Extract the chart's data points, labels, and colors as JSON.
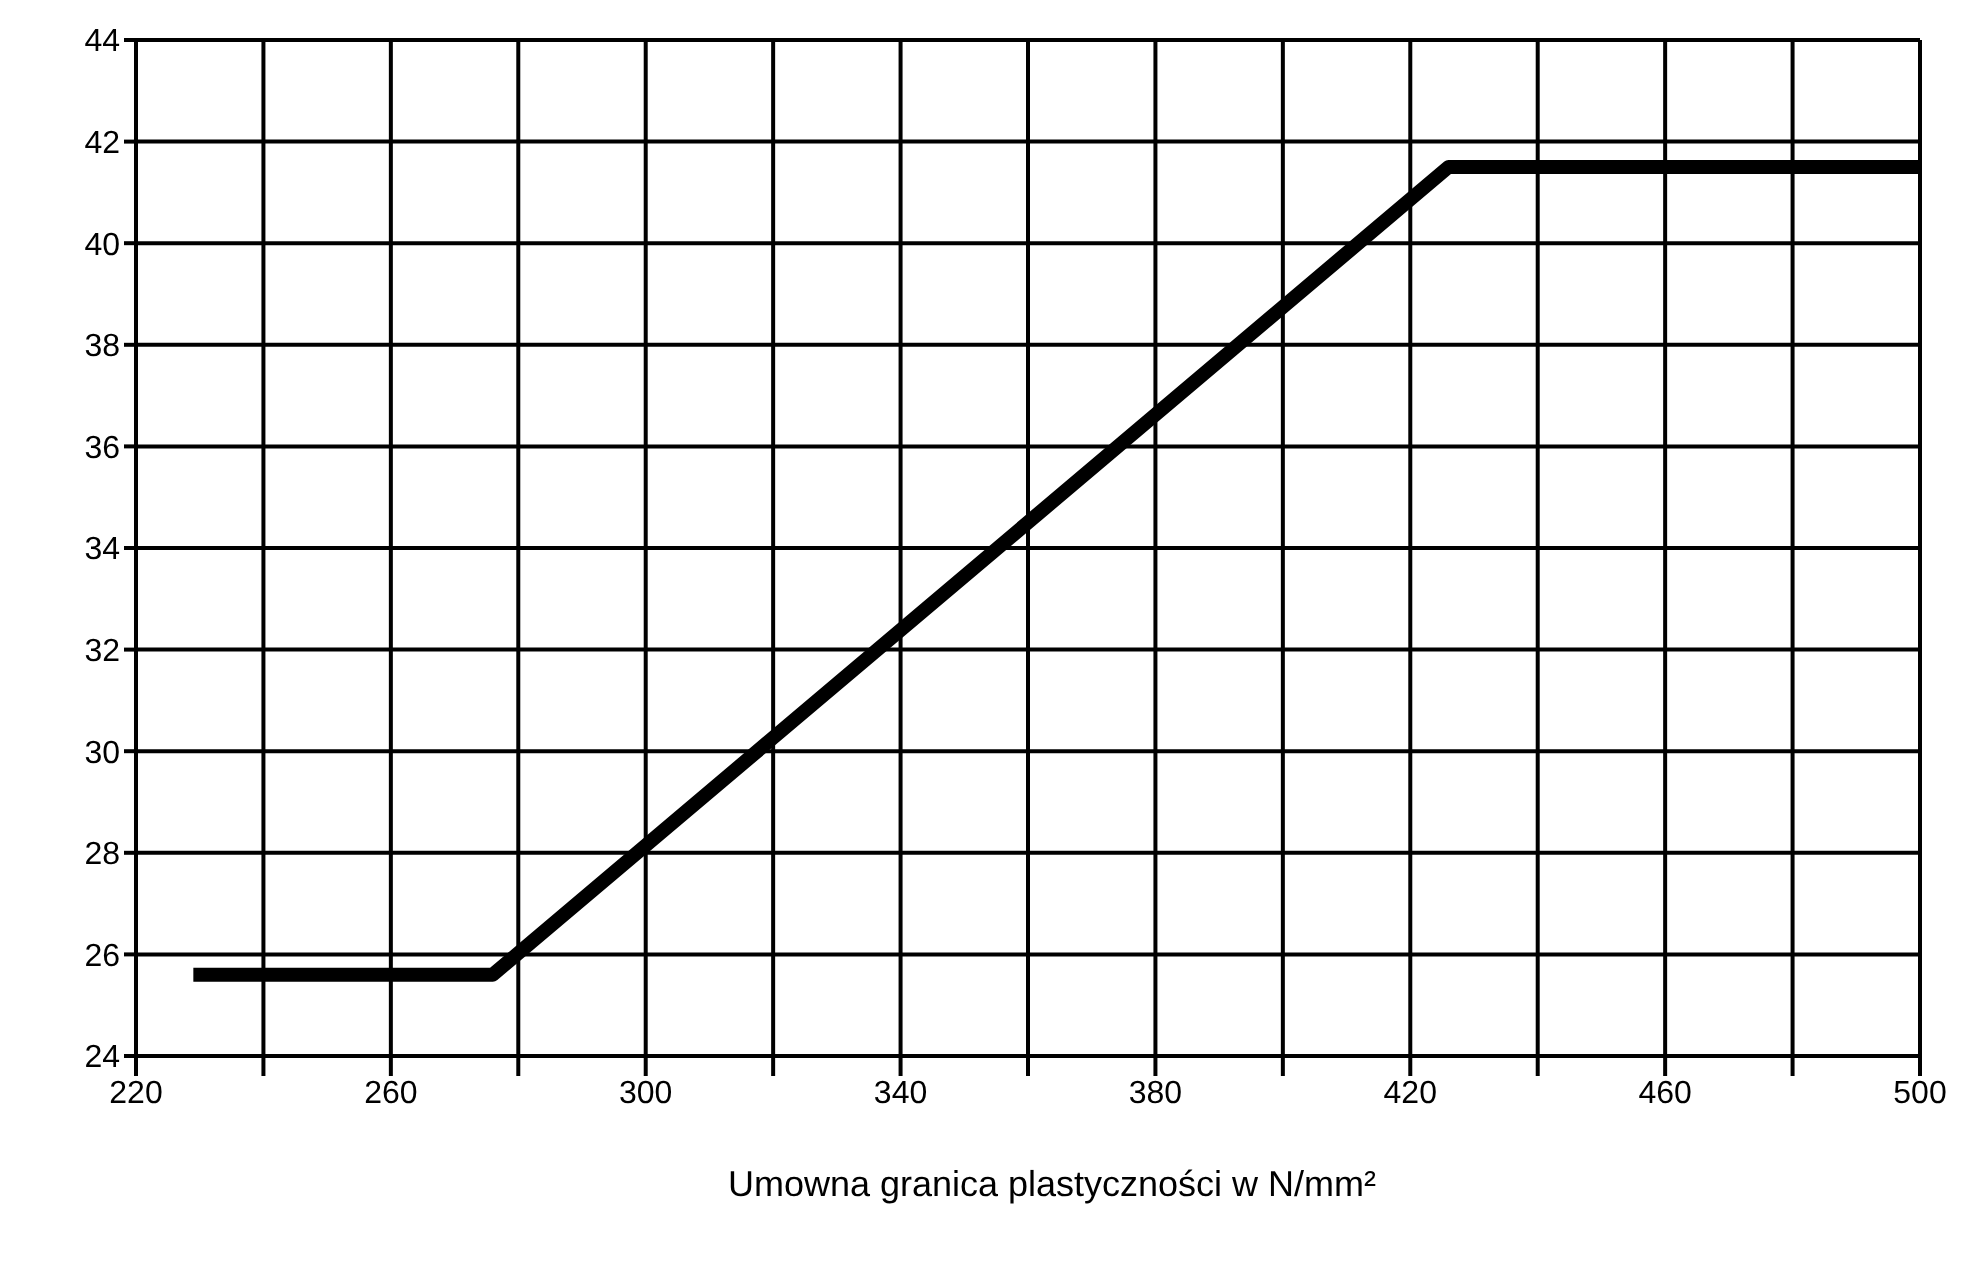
{
  "chart_data": {
    "type": "line",
    "xlabel": "Umowna granica plastyczności w N/mm²",
    "x": [
      229,
      276,
      426,
      500
    ],
    "series": [
      {
        "color": "#000000",
        "values": [
          25.6,
          25.6,
          41.5,
          41.5
        ]
      }
    ],
    "xlim": [
      220,
      500
    ],
    "xticks": [
      220,
      {
        "value": 240,
        "label": null
      },
      260,
      {
        "value": 280,
        "label": null
      },
      300,
      {
        "value": 320,
        "label": null
      },
      340,
      {
        "value": 360,
        "label": null
      },
      380,
      {
        "value": 400,
        "label": null
      },
      420,
      {
        "value": 440,
        "label": null
      },
      460,
      {
        "value": 480,
        "label": null
      },
      500
    ],
    "ylim": [
      24,
      44
    ],
    "yticks": [
      24,
      26,
      28,
      30,
      32,
      34,
      36,
      38,
      40,
      42,
      44
    ],
    "grid": true,
    "marker": "none",
    "line_style": "solid",
    "legend": false
  }
}
